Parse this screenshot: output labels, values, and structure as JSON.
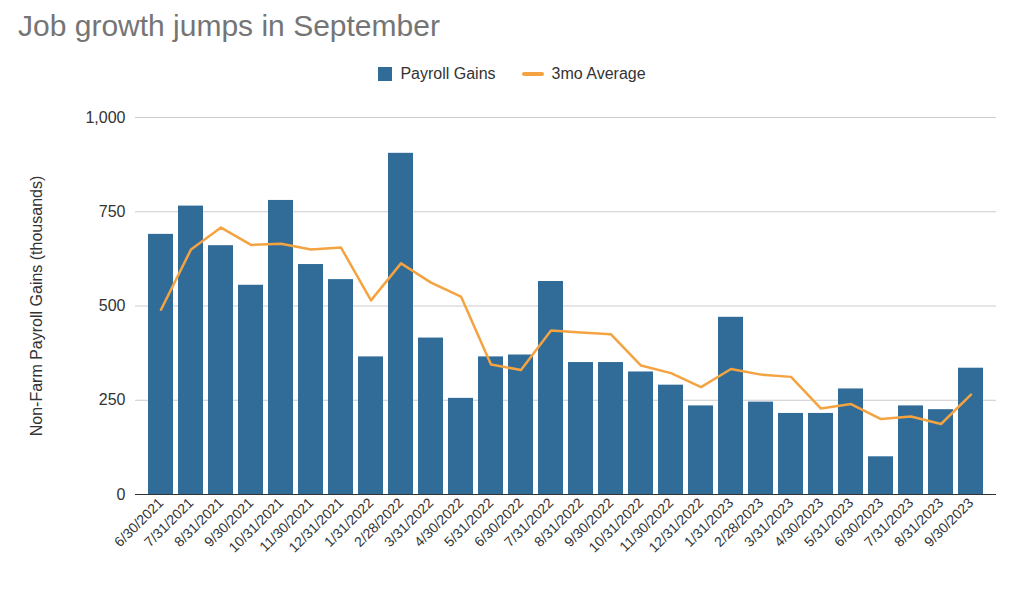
{
  "chart_data": {
    "type": "bar",
    "title": "Job growth jumps in September",
    "y_label": "Non-Farm Payroll Gains (thousands)",
    "categories": [
      "6/30/2021",
      "7/31/2021",
      "8/31/2021",
      "9/30/2021",
      "10/31/2021",
      "11/30/2021",
      "12/31/2021",
      "1/31/2022",
      "2/28/2022",
      "3/31/2022",
      "4/30/2022",
      "5/31/2022",
      "6/30/2022",
      "7/31/2022",
      "8/31/2022",
      "9/30/2022",
      "10/31/2022",
      "11/30/2022",
      "12/31/2022",
      "1/31/2023",
      "2/28/2023",
      "3/31/2023",
      "4/30/2023",
      "5/31/2023",
      "6/30/2023",
      "7/31/2023",
      "8/31/2023",
      "9/30/2023"
    ],
    "series": [
      {
        "name": "Payroll Gains",
        "type": "bar",
        "color": "#306c97",
        "values": [
          690,
          765,
          660,
          555,
          780,
          610,
          570,
          365,
          905,
          415,
          255,
          365,
          370,
          565,
          350,
          350,
          325,
          290,
          235,
          470,
          245,
          215,
          215,
          280,
          100,
          235,
          225,
          335
        ]
      },
      {
        "name": "3mo Average",
        "type": "line",
        "color": "#f4a340",
        "values": [
          490,
          650,
          708,
          662,
          665,
          650,
          655,
          515,
          613,
          562,
          525,
          345,
          330,
          435,
          430,
          425,
          342,
          322,
          285,
          333,
          318,
          312,
          228,
          240,
          200,
          207,
          187,
          265
        ]
      }
    ],
    "ylim": [
      0,
      1000
    ],
    "yticks": [
      0,
      250,
      500,
      750,
      {
        "value": 1000,
        "label": "1,000"
      }
    ],
    "grid": true,
    "legend": "top"
  }
}
